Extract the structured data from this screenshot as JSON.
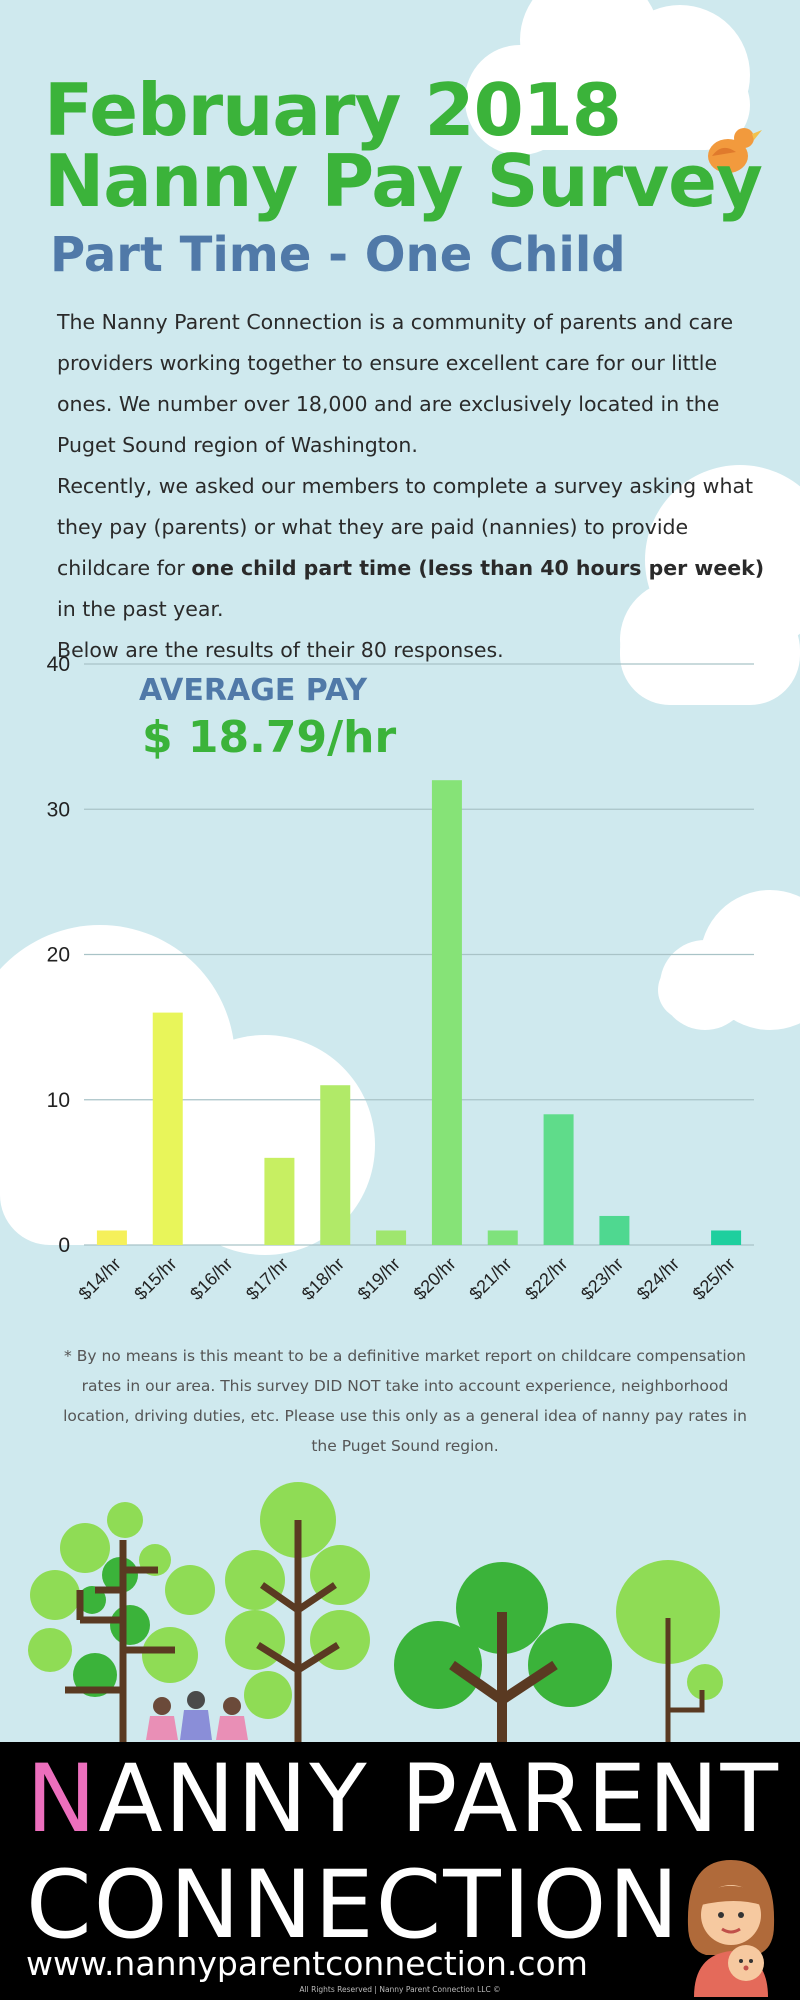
{
  "header": {
    "title_line1": "February 2018",
    "title_line2": "Nanny Pay Survey",
    "subtitle": "Part Time - One Child"
  },
  "intro": {
    "p1": "The Nanny Parent Connection is a community of parents and care providers working together to ensure excellent care for our little ones. We number over 18,000 and are exclusively located in the Puget Sound region of Washington.",
    "p2_before": "Recently, we asked our members to complete a survey asking what they pay (parents) or what they are paid (nannies) to provide childcare for ",
    "p2_bold": "one child part time (less than 40 hours per week)",
    "p2_after": " in the past year.",
    "p3": "Below are the results of their 80 responses."
  },
  "average": {
    "label": "AVERAGE PAY",
    "value": "$ 18.79/hr"
  },
  "chart_data": {
    "type": "bar",
    "categories": [
      "$14/hr",
      "$15/hr",
      "$16/hr",
      "$17/hr",
      "$18/hr",
      "$19/hr",
      "$20/hr",
      "$21/hr",
      "$22/hr",
      "$23/hr",
      "$24/hr",
      "$25/hr"
    ],
    "values": [
      1,
      16,
      0,
      6,
      11,
      1,
      32,
      1,
      9,
      2,
      0,
      1
    ],
    "bar_colors": [
      "#f5f05a",
      "#e8f55a",
      "#d8f35e",
      "#c7ef62",
      "#b1ea68",
      "#9fe66e",
      "#86e377",
      "#7fe27c",
      "#5fdc8a",
      "#4fd890",
      "#3ed597",
      "#1ecf9e"
    ],
    "ylim": [
      0,
      40
    ],
    "yticks": [
      0,
      10,
      20,
      30,
      40
    ],
    "grid": true,
    "xlabel": "",
    "ylabel": ""
  },
  "footnote": "* By no means is this meant to be a definitive market report on childcare compensation rates in our area. This survey DID NOT take into account experience, neighborhood location, driving duties, etc. Please use this only as a general idea of nanny pay rates in the Puget Sound region.",
  "footer": {
    "brand_first_letter": "N",
    "brand_line1_rest": "ANNY PARENT",
    "brand_line2": "CONNECTION",
    "website": "www.nannyparentconnection.com",
    "copyright": "All Rights Reserved | Nanny Parent Connection LLC ©"
  },
  "colors": {
    "background": "#cfe9ee",
    "title_green": "#3bb33a",
    "subtitle_blue": "#5079a8",
    "brand_pink": "#ec6fbd",
    "footer_bg": "#000000"
  },
  "decorations": [
    "cloud",
    "bird-icon",
    "tree",
    "children-icon",
    "nanny-with-baby-icon"
  ]
}
